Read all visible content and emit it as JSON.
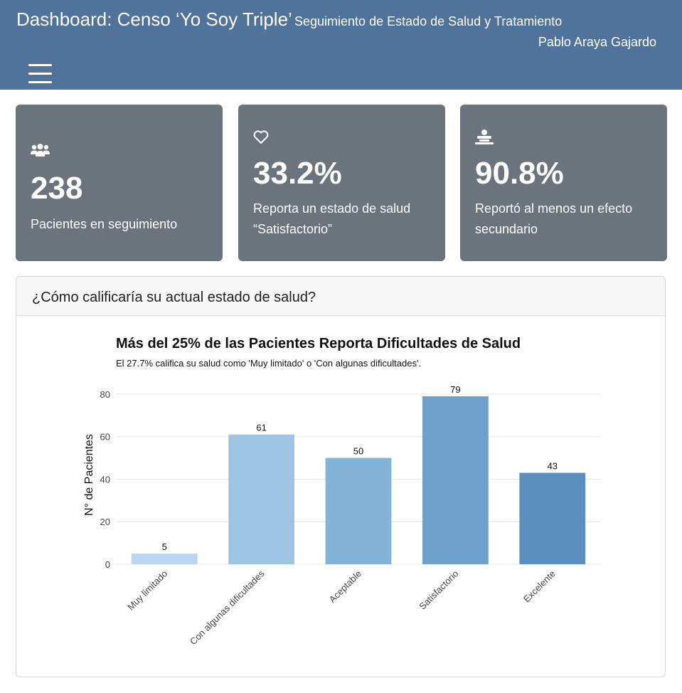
{
  "header": {
    "title": "Dashboard: Censo ‘Yo Soy Triple’",
    "subtitle": "Seguimiento de Estado de Salud y Tratamiento",
    "author": "Pablo Araya Gajardo",
    "menu_icon": "hamburger-menu-icon",
    "background": "#4f739a"
  },
  "value_boxes": [
    {
      "icon": "users-icon",
      "value": "238",
      "label": "Pacientes en seguimiento"
    },
    {
      "icon": "heart-icon",
      "value": "33.2%",
      "label": "Reporta un estado de salud “Satisfactorio”"
    },
    {
      "icon": "patient-bed-icon",
      "value": "90.8%",
      "label": "Reportó al menos un efecto secundario"
    }
  ],
  "card": {
    "header": "¿Cómo calificaría su actual estado de salud?"
  },
  "chart_data": {
    "type": "bar",
    "title": "Más del 25% de las Pacientes Reporta Dificultades de Salud",
    "subtitle": "El 27.7% califica su salud como 'Muy limitado' o 'Con algunas dificultades'.",
    "xlabel": "",
    "ylabel": "N° de Pacientes",
    "categories": [
      "Muy limitado",
      "Con algunas dificultades",
      "Aceptable",
      "Satisfactorio",
      "Excelente"
    ],
    "values": [
      5,
      61,
      50,
      79,
      43
    ],
    "colors": [
      "#b9d6ee",
      "#9dc5e3",
      "#84b3d8",
      "#6da1cb",
      "#5b8fbe"
    ],
    "ylim": [
      0,
      84
    ],
    "yticks": [
      0,
      20,
      40,
      60,
      80
    ],
    "grid": true,
    "legend": "none"
  }
}
